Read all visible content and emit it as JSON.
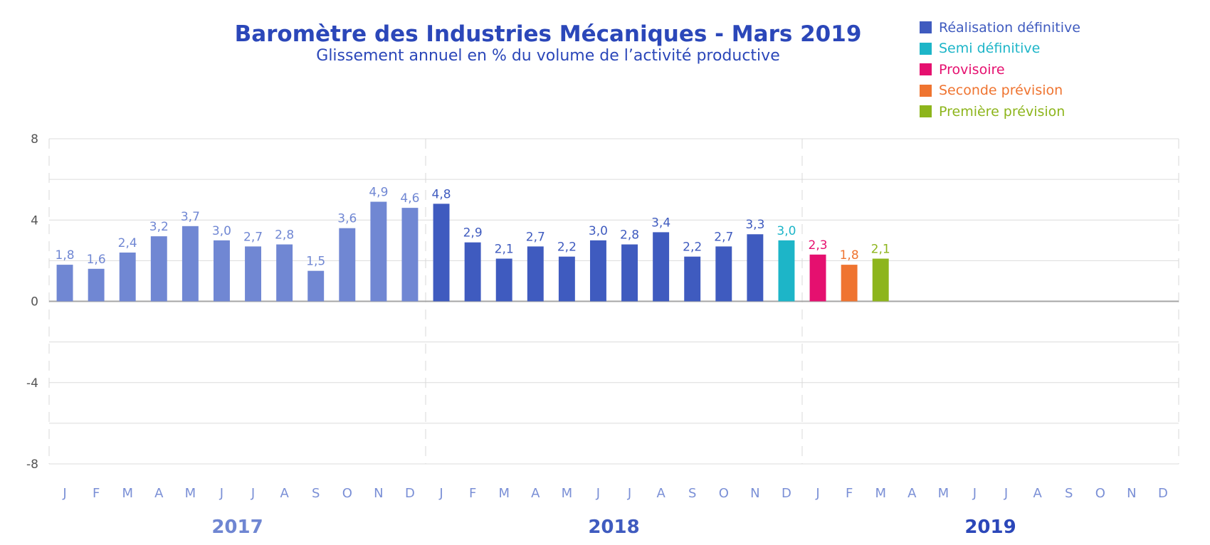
{
  "chart_data": {
    "type": "bar",
    "title": "Baromètre des Industries Mécaniques - Mars 2019",
    "subtitle": "Glissement annuel en % du volume de l’activité productive",
    "ylim": [
      -8,
      8
    ],
    "yticks": [
      {
        "value": 8,
        "label": "8"
      },
      {
        "value": 4,
        "label": "4"
      },
      {
        "value": 0,
        "label": "0"
      },
      {
        "value": -4,
        "label": "-4"
      },
      {
        "value": -8,
        "label": "-8"
      }
    ],
    "grid": true,
    "legend_position": "top-right",
    "legend": [
      {
        "label": "Réalisation définitive",
        "color": "#3f5bbf"
      },
      {
        "label": "Semi définitive",
        "color": "#1db5c8"
      },
      {
        "label": "Provisoire",
        "color": "#e5106f"
      },
      {
        "label": "Seconde prévision",
        "color": "#ef7430"
      },
      {
        "label": "Première prévision",
        "color": "#8db51c"
      }
    ],
    "years": [
      {
        "label": "2017",
        "color": "#6f86d2"
      },
      {
        "label": "2018",
        "color": "#3f5bbf"
      },
      {
        "label": "2019",
        "color": "#2b47b9"
      }
    ],
    "months": [
      "J",
      "F",
      "M",
      "A",
      "M",
      "J",
      "J",
      "A",
      "S",
      "O",
      "N",
      "D"
    ],
    "bars": [
      {
        "value": 1.8,
        "label": "1,8",
        "color": "#7087d3"
      },
      {
        "value": 1.6,
        "label": "1,6",
        "color": "#7087d3"
      },
      {
        "value": 2.4,
        "label": "2,4",
        "color": "#7087d3"
      },
      {
        "value": 3.2,
        "label": "3,2",
        "color": "#7087d3"
      },
      {
        "value": 3.7,
        "label": "3,7",
        "color": "#7087d3"
      },
      {
        "value": 3.0,
        "label": "3,0",
        "color": "#7087d3"
      },
      {
        "value": 2.7,
        "label": "2,7",
        "color": "#7087d3"
      },
      {
        "value": 2.8,
        "label": "2,8",
        "color": "#7087d3"
      },
      {
        "value": 1.5,
        "label": "1,5",
        "color": "#7087d3"
      },
      {
        "value": 3.6,
        "label": "3,6",
        "color": "#7087d3"
      },
      {
        "value": 4.9,
        "label": "4,9",
        "color": "#7087d3"
      },
      {
        "value": 4.6,
        "label": "4,6",
        "color": "#7087d3"
      },
      {
        "value": 4.8,
        "label": "4,8",
        "color": "#3f5bbf"
      },
      {
        "value": 2.9,
        "label": "2,9",
        "color": "#3f5bbf"
      },
      {
        "value": 2.1,
        "label": "2,1",
        "color": "#3f5bbf"
      },
      {
        "value": 2.7,
        "label": "2,7",
        "color": "#3f5bbf"
      },
      {
        "value": 2.2,
        "label": "2,2",
        "color": "#3f5bbf"
      },
      {
        "value": 3.0,
        "label": "3,0",
        "color": "#3f5bbf"
      },
      {
        "value": 2.8,
        "label": "2,8",
        "color": "#3f5bbf"
      },
      {
        "value": 3.4,
        "label": "3,4",
        "color": "#3f5bbf"
      },
      {
        "value": 2.2,
        "label": "2,2",
        "color": "#3f5bbf"
      },
      {
        "value": 2.7,
        "label": "2,7",
        "color": "#3f5bbf"
      },
      {
        "value": 3.3,
        "label": "3,3",
        "color": "#3f5bbf"
      },
      {
        "value": 3.0,
        "label": "3,0",
        "color": "#1db5c8"
      },
      {
        "value": 2.3,
        "label": "2,3",
        "color": "#e5106f"
      },
      {
        "value": 1.8,
        "label": "1,8",
        "color": "#ef7430"
      },
      {
        "value": 2.1,
        "label": "2,1",
        "color": "#8db51c"
      }
    ]
  }
}
